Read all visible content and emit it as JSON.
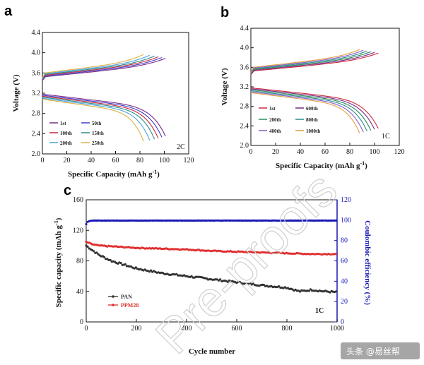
{
  "chart_data": [
    {
      "type": "line",
      "panel": "a",
      "xlabel": "Specific Capacity (mAh g",
      "xlabel_sup": "-1",
      "xlabel_end": ")",
      "ylabel": "Voltage (V)",
      "xlim": [
        0,
        120
      ],
      "ylim": [
        2.0,
        4.4
      ],
      "xticks": [
        "0",
        "20",
        "40",
        "60",
        "80",
        "100",
        "120"
      ],
      "yticks": [
        "2.0",
        "2.4",
        "2.8",
        "3.2",
        "3.6",
        "4.0",
        "4.4"
      ],
      "annotation": "2C",
      "series": [
        {
          "name": "1st",
          "color": "#7a2a88",
          "capacity": 101
        },
        {
          "name": "50th",
          "color": "#3f3fc8",
          "capacity": 98
        },
        {
          "name": "100th",
          "color": "#c8283c",
          "capacity": 95
        },
        {
          "name": "150th",
          "color": "#2a8c8c",
          "capacity": 92
        },
        {
          "name": "200th",
          "color": "#49a3e0",
          "capacity": 88
        },
        {
          "name": "250th",
          "color": "#e0b040",
          "capacity": 83
        }
      ]
    },
    {
      "type": "line",
      "panel": "b",
      "xlabel": "Specific Capacity (mAh g",
      "xlabel_sup": "-1",
      "xlabel_end": ")",
      "ylabel": "Voltage (V)",
      "xlim": [
        0,
        120
      ],
      "ylim": [
        2.0,
        4.4
      ],
      "xticks": [
        "0",
        "20",
        "40",
        "60",
        "80",
        "100",
        "120"
      ],
      "yticks": [
        "2.0",
        "2.4",
        "2.8",
        "3.2",
        "3.6",
        "4.0",
        "4.4"
      ],
      "annotation": "1C",
      "series": [
        {
          "name": "1st",
          "color": "#c8283c",
          "capacity": 103
        },
        {
          "name": "600th",
          "color": "#7a2a88",
          "capacity": 100
        },
        {
          "name": "200th",
          "color": "#2a8c5c",
          "capacity": 97
        },
        {
          "name": "800th",
          "color": "#2a8c8c",
          "capacity": 94
        },
        {
          "name": "400th",
          "color": "#8a5ac8",
          "capacity": 91
        },
        {
          "name": "1000th",
          "color": "#e0a040",
          "capacity": 88
        }
      ]
    },
    {
      "type": "scatter",
      "panel": "c",
      "xlabel": "Cycle number",
      "ylabel": "Specific capacity (mAh g",
      "ylabel_sup": "-1",
      "ylabel_end": ")",
      "y2label": "Coulombic efficiency (%)",
      "xlim": [
        0,
        1000
      ],
      "ylim": [
        0,
        160
      ],
      "y2lim": [
        0,
        120
      ],
      "xticks": [
        "0",
        "200",
        "400",
        "600",
        "800",
        "1000"
      ],
      "yticks": [
        "0",
        "40",
        "80",
        "120",
        "160"
      ],
      "y2ticks": [
        "0",
        "20",
        "40",
        "60",
        "80",
        "100",
        "120"
      ],
      "annotation": "1C",
      "series": [
        {
          "name": "PAN",
          "color": "#333333",
          "x": [
            0,
            20,
            50,
            100,
            150,
            200,
            300,
            400,
            500,
            600,
            700,
            800,
            850,
            900,
            950,
            1000
          ],
          "y": [
            100,
            95,
            88,
            80,
            75,
            70,
            64,
            60,
            56,
            52,
            48,
            45,
            40,
            42,
            40,
            39
          ]
        },
        {
          "name": "PPM28",
          "color": "#e03030",
          "x": [
            0,
            20,
            50,
            100,
            200,
            300,
            400,
            500,
            600,
            700,
            800,
            900,
            1000
          ],
          "y": [
            105,
            102,
            100,
            99,
            97,
            96,
            95,
            93,
            92,
            91,
            90,
            89,
            89
          ]
        },
        {
          "name": "Coulombic efficiency",
          "color": "#1a1ab4",
          "x": [
            0,
            5,
            10,
            20,
            50,
            100,
            1000
          ],
          "y": [
            96,
            98,
            99,
            99.5,
            99.6,
            99.6,
            99.6
          ]
        }
      ]
    }
  ],
  "panel_labels": {
    "a": "a",
    "b": "b",
    "c": "c"
  },
  "watermark": "Pre-proofs",
  "credit": "头条 @易丝帮"
}
